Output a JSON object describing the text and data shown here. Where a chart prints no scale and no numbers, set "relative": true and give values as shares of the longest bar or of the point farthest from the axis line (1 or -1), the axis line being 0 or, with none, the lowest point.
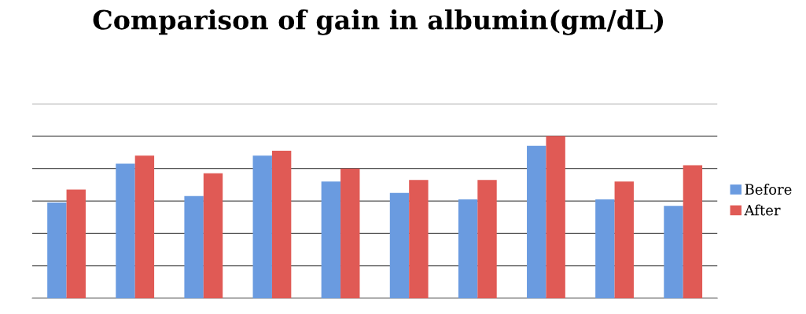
{
  "chart_data": {
    "type": "bar",
    "title": "Comparison of gain in albumin(gm/dL)",
    "relative": true,
    "categories": [
      null,
      null,
      null,
      null,
      null,
      null,
      null,
      null,
      null,
      null
    ],
    "series": [
      {
        "name": "Before",
        "color": "#6a9be0",
        "values": [
          0.59,
          0.83,
          0.63,
          0.88,
          0.72,
          0.65,
          0.61,
          0.94,
          0.61,
          0.57
        ]
      },
      {
        "name": "After",
        "color": "#e05a55",
        "values": [
          0.67,
          0.88,
          0.77,
          0.91,
          0.8,
          0.73,
          0.73,
          1.0,
          0.72,
          0.82
        ]
      }
    ],
    "grid": "y",
    "legend": "right"
  }
}
